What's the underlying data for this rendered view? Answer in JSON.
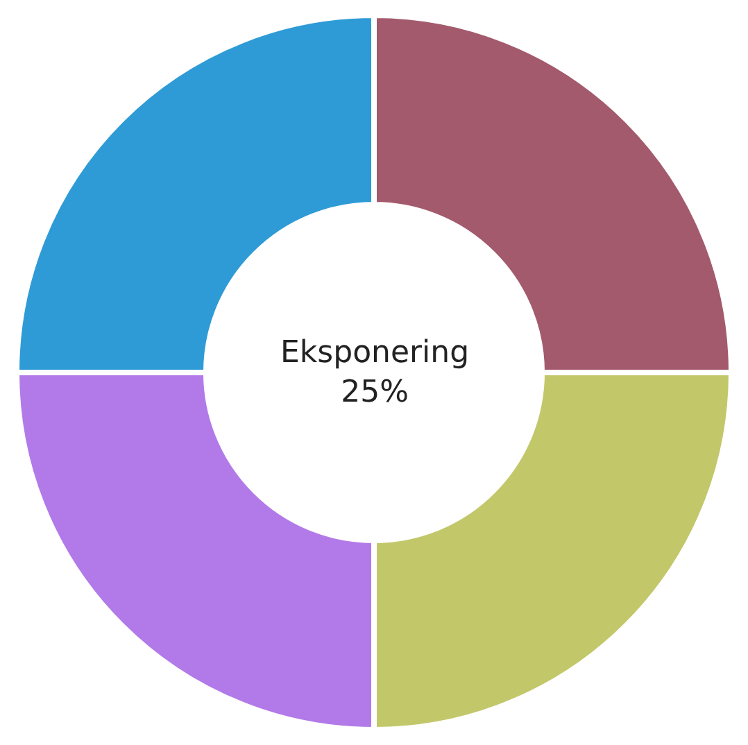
{
  "chart_data": {
    "type": "donut",
    "categories": [
      null,
      null,
      null,
      null
    ],
    "values": [
      25,
      25,
      25,
      25
    ],
    "colors": [
      "#a35a6c",
      "#c2c76a",
      "#b27ae8",
      "#2e9bd6"
    ],
    "annotations": [
      "Eksponering\n25%"
    ],
    "legend": false
  }
}
